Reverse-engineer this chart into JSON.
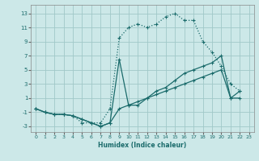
{
  "xlabel": "Humidex (Indice chaleur)",
  "bg_color": "#cce8e8",
  "grid_color": "#a0c8c8",
  "line_color": "#1a6b6b",
  "xlim": [
    -0.5,
    23.5
  ],
  "ylim": [
    -3.8,
    14.2
  ],
  "xticks": [
    0,
    1,
    2,
    3,
    4,
    5,
    6,
    7,
    8,
    9,
    10,
    11,
    12,
    13,
    14,
    15,
    16,
    17,
    18,
    19,
    20,
    21,
    22,
    23
  ],
  "yticks": [
    -3,
    -1,
    1,
    3,
    5,
    7,
    9,
    11,
    13
  ],
  "line1_x": [
    0,
    1,
    2,
    3,
    4,
    5,
    6,
    7,
    8,
    9,
    10,
    11,
    12,
    13,
    14,
    15,
    16,
    17,
    18,
    19,
    20,
    21,
    22
  ],
  "line1_y": [
    -0.5,
    -1,
    -1.3,
    -1.3,
    -1.5,
    -2.5,
    -2.5,
    -2.5,
    -0.5,
    9.5,
    11,
    11.5,
    11,
    11.5,
    12.5,
    13,
    12,
    12,
    9,
    7.5,
    5.5,
    3,
    2
  ],
  "line2_x": [
    0,
    1,
    2,
    3,
    4,
    5,
    6,
    7,
    8,
    9,
    10,
    11,
    12,
    13,
    14,
    15,
    16,
    17,
    18,
    19,
    20,
    21,
    22
  ],
  "line2_y": [
    -0.5,
    -1,
    -1.3,
    -1.3,
    -1.5,
    -2,
    -2.5,
    -3,
    -2.5,
    6.5,
    0,
    0,
    1,
    2,
    2.5,
    3.5,
    4.5,
    5,
    5.5,
    6,
    7,
    1,
    2
  ],
  "line3_x": [
    0,
    1,
    2,
    3,
    4,
    5,
    6,
    7,
    8,
    9,
    10,
    11,
    12,
    13,
    14,
    15,
    16,
    17,
    18,
    19,
    20,
    21,
    22
  ],
  "line3_y": [
    -0.5,
    -1,
    -1.3,
    -1.3,
    -1.5,
    -2,
    -2.5,
    -3,
    -2.5,
    -0.5,
    0,
    0.5,
    1,
    1.5,
    2,
    2.5,
    3,
    3.5,
    4,
    4.5,
    5,
    1,
    1
  ]
}
